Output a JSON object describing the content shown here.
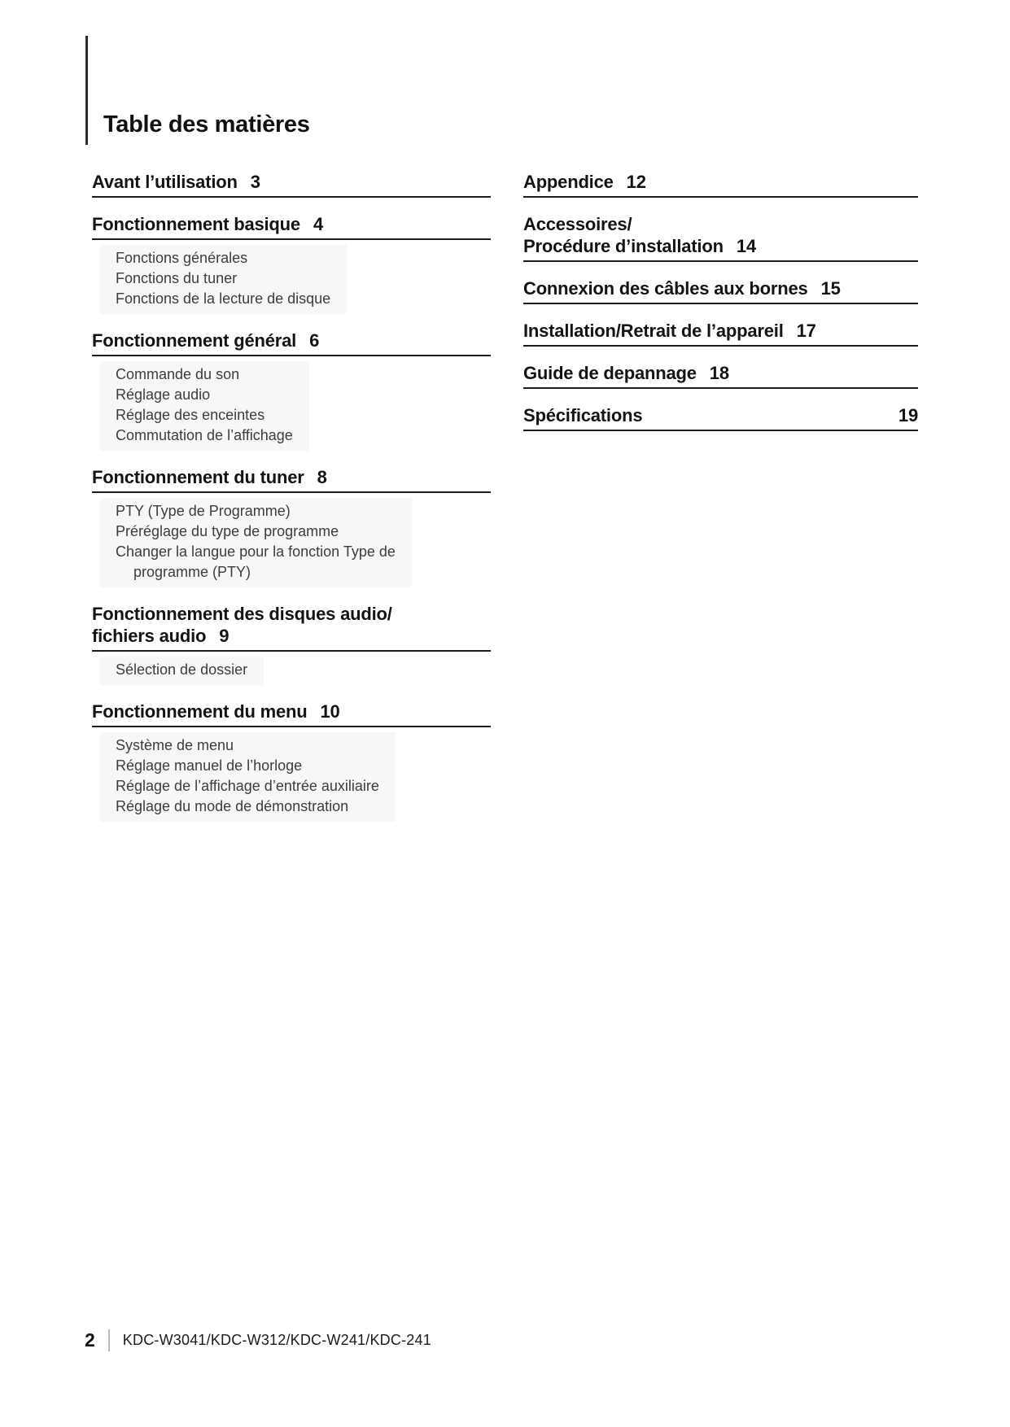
{
  "title": "Table des matières",
  "colors": {
    "text": "#111111",
    "subitem_text": "#3d3d3d",
    "rule": "#1c1c1c",
    "subitem_bg": "#f7f7f7"
  },
  "toc": {
    "left": [
      {
        "label": "Avant l’utilisation",
        "page": "3",
        "items": []
      },
      {
        "label": "Fonctionnement basique",
        "page": "4",
        "items": [
          "Fonctions générales",
          "Fonctions du tuner",
          "Fonctions de la lecture de disque"
        ]
      },
      {
        "label": "Fonctionnement général",
        "page": "6",
        "items": [
          "Commande du son",
          "Réglage audio",
          "Réglage des enceintes",
          "Commutation de l’affichage"
        ]
      },
      {
        "label": "Fonctionnement du tuner",
        "page": "8",
        "items": [
          "PTY (Type de Programme)",
          "Préréglage du type de programme",
          "Changer la langue pour la fonction Type de\nprogramme (PTY)"
        ]
      },
      {
        "label": "Fonctionnement des disques audio/\nfichiers audio",
        "page": "9",
        "items": [
          "Sélection de dossier"
        ]
      },
      {
        "label": "Fonctionnement du menu",
        "page": "10",
        "items": [
          "Système de menu",
          "Réglage manuel de l’horloge",
          "Réglage de l’affichage d’entrée auxiliaire",
          "Réglage du mode de démonstration"
        ]
      }
    ],
    "right": [
      {
        "label": "Appendice",
        "page": "12"
      },
      {
        "label": "Accessoires/\nProcédure d’installation",
        "page": "14"
      },
      {
        "label": "Connexion des câbles aux bornes",
        "page": "15"
      },
      {
        "label": "Installation/Retrait de l’appareil",
        "page": "17"
      },
      {
        "label": "Guide de depannage",
        "page": "18"
      },
      {
        "label": "Spécifications",
        "page": "19"
      }
    ]
  },
  "footer": {
    "page_number": "2",
    "models": "KDC-W3041/KDC-W312/KDC-W241/KDC-241"
  }
}
